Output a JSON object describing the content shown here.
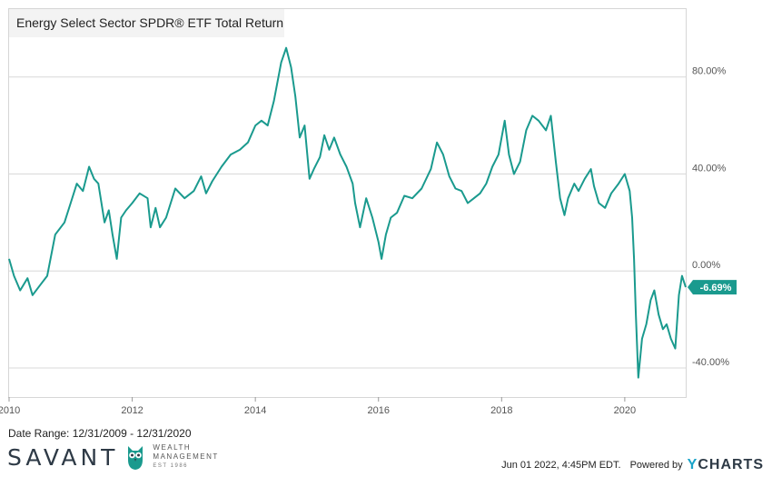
{
  "chart_data": {
    "type": "line",
    "title": "Energy Select Sector SPDR® ETF Total Return",
    "xlabel": "",
    "ylabel": "",
    "x_range": [
      2010.0,
      2020.99
    ],
    "ylim": [
      -52,
      108
    ],
    "y_ticks": [
      80,
      40,
      0,
      -40
    ],
    "y_tick_labels": [
      "80.00%",
      "40.00%",
      "0.00%",
      "-40.00%"
    ],
    "x_ticks": [
      2010,
      2012,
      2014,
      2016,
      2018,
      2020
    ],
    "x_tick_labels": [
      "2010",
      "2012",
      "2014",
      "2016",
      "2018",
      "2020"
    ],
    "grid": true,
    "legend": "none",
    "last_value_label": "-6.69%",
    "series": [
      {
        "color": "#1a9a8e",
        "points": [
          [
            2010.0,
            5
          ],
          [
            2010.08,
            -2
          ],
          [
            2010.18,
            -8
          ],
          [
            2010.3,
            -3
          ],
          [
            2010.38,
            -10
          ],
          [
            2010.5,
            -6
          ],
          [
            2010.62,
            -2
          ],
          [
            2010.75,
            15
          ],
          [
            2010.9,
            20
          ],
          [
            2011.0,
            28
          ],
          [
            2011.1,
            36
          ],
          [
            2011.2,
            33
          ],
          [
            2011.3,
            43
          ],
          [
            2011.38,
            38
          ],
          [
            2011.45,
            36
          ],
          [
            2011.55,
            20
          ],
          [
            2011.62,
            25
          ],
          [
            2011.68,
            15
          ],
          [
            2011.75,
            5
          ],
          [
            2011.82,
            22
          ],
          [
            2011.9,
            25
          ],
          [
            2012.0,
            28
          ],
          [
            2012.12,
            32
          ],
          [
            2012.25,
            30
          ],
          [
            2012.3,
            18
          ],
          [
            2012.38,
            26
          ],
          [
            2012.45,
            18
          ],
          [
            2012.55,
            22
          ],
          [
            2012.7,
            34
          ],
          [
            2012.85,
            30
          ],
          [
            2013.0,
            33
          ],
          [
            2013.12,
            39
          ],
          [
            2013.2,
            32
          ],
          [
            2013.3,
            37
          ],
          [
            2013.45,
            43
          ],
          [
            2013.6,
            48
          ],
          [
            2013.75,
            50
          ],
          [
            2013.88,
            53
          ],
          [
            2014.0,
            60
          ],
          [
            2014.1,
            62
          ],
          [
            2014.2,
            60
          ],
          [
            2014.3,
            70
          ],
          [
            2014.42,
            86
          ],
          [
            2014.5,
            92
          ],
          [
            2014.58,
            84
          ],
          [
            2014.65,
            72
          ],
          [
            2014.72,
            55
          ],
          [
            2014.8,
            60
          ],
          [
            2014.88,
            38
          ],
          [
            2014.95,
            42
          ],
          [
            2015.05,
            47
          ],
          [
            2015.12,
            56
          ],
          [
            2015.2,
            50
          ],
          [
            2015.28,
            55
          ],
          [
            2015.38,
            48
          ],
          [
            2015.48,
            43
          ],
          [
            2015.58,
            36
          ],
          [
            2015.62,
            28
          ],
          [
            2015.7,
            18
          ],
          [
            2015.8,
            30
          ],
          [
            2015.9,
            22
          ],
          [
            2016.0,
            12
          ],
          [
            2016.05,
            5
          ],
          [
            2016.12,
            15
          ],
          [
            2016.2,
            22
          ],
          [
            2016.3,
            24
          ],
          [
            2016.42,
            31
          ],
          [
            2016.55,
            30
          ],
          [
            2016.7,
            34
          ],
          [
            2016.85,
            42
          ],
          [
            2016.95,
            53
          ],
          [
            2017.05,
            48
          ],
          [
            2017.15,
            39
          ],
          [
            2017.25,
            34
          ],
          [
            2017.35,
            33
          ],
          [
            2017.45,
            28
          ],
          [
            2017.55,
            30
          ],
          [
            2017.65,
            32
          ],
          [
            2017.75,
            36
          ],
          [
            2017.85,
            43
          ],
          [
            2017.95,
            48
          ],
          [
            2018.05,
            62
          ],
          [
            2018.12,
            48
          ],
          [
            2018.2,
            40
          ],
          [
            2018.3,
            45
          ],
          [
            2018.4,
            58
          ],
          [
            2018.5,
            64
          ],
          [
            2018.6,
            62
          ],
          [
            2018.72,
            58
          ],
          [
            2018.8,
            64
          ],
          [
            2018.88,
            45
          ],
          [
            2018.95,
            30
          ],
          [
            2019.02,
            23
          ],
          [
            2019.08,
            30
          ],
          [
            2019.18,
            36
          ],
          [
            2019.25,
            33
          ],
          [
            2019.35,
            38
          ],
          [
            2019.45,
            42
          ],
          [
            2019.5,
            35
          ],
          [
            2019.58,
            28
          ],
          [
            2019.68,
            26
          ],
          [
            2019.78,
            32
          ],
          [
            2019.9,
            36
          ],
          [
            2020.0,
            40
          ],
          [
            2020.08,
            33
          ],
          [
            2020.12,
            22
          ],
          [
            2020.15,
            5
          ],
          [
            2020.18,
            -18
          ],
          [
            2020.22,
            -44
          ],
          [
            2020.28,
            -28
          ],
          [
            2020.35,
            -22
          ],
          [
            2020.42,
            -12
          ],
          [
            2020.48,
            -8
          ],
          [
            2020.55,
            -18
          ],
          [
            2020.62,
            -24
          ],
          [
            2020.68,
            -22
          ],
          [
            2020.75,
            -28
          ],
          [
            2020.82,
            -32
          ],
          [
            2020.88,
            -10
          ],
          [
            2020.93,
            -2
          ],
          [
            2020.99,
            -6.69
          ]
        ]
      }
    ]
  },
  "footer": {
    "date_range": "Date Range: 12/31/2009 - 12/31/2020",
    "timestamp": "Jun 01 2022, 4:45PM EDT.",
    "powered_by": "Powered by",
    "ycharts_y": "Y",
    "ycharts_rest": "CHARTS"
  },
  "logo": {
    "word": "SAVANT",
    "line1": "WEALTH",
    "line2": "MANAGEMENT",
    "est": "EST 1986"
  },
  "colors": {
    "series": "#1a9a8e",
    "grid": "#d8d8d8",
    "label_bg": "#1a9a8e"
  }
}
